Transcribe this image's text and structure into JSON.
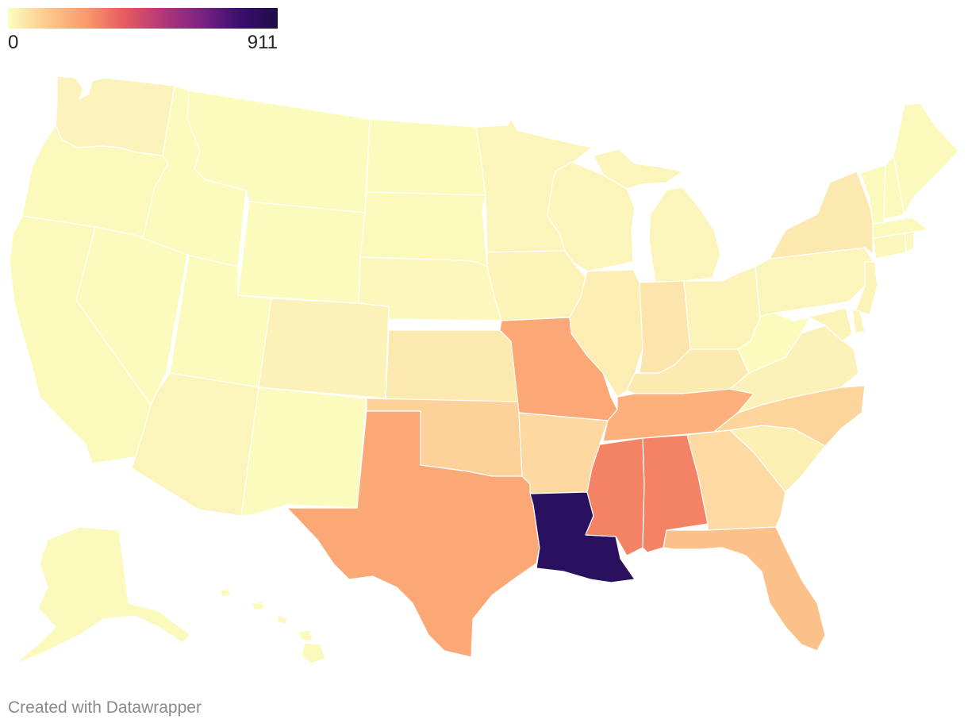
{
  "legend": {
    "min_label": "0",
    "max_label": "911",
    "gradient_colors": [
      "#fcfdbf",
      "#fdc98f",
      "#fc9b6c",
      "#e65c5f",
      "#b63778",
      "#7c2382",
      "#3b0f70",
      "#1f0c48"
    ]
  },
  "credit": "Created with Datawrapper",
  "states": [
    {
      "id": "WA",
      "color": "#fbf3bb"
    },
    {
      "id": "OR",
      "color": "#fcf9bd"
    },
    {
      "id": "CA",
      "color": "#fcf9bd"
    },
    {
      "id": "NV",
      "color": "#fcfbbe"
    },
    {
      "id": "ID",
      "color": "#fcfbbe"
    },
    {
      "id": "MT",
      "color": "#fcfbbe"
    },
    {
      "id": "WY",
      "color": "#fcfbbe"
    },
    {
      "id": "UT",
      "color": "#fcfbbe"
    },
    {
      "id": "AZ",
      "color": "#fcf5bb"
    },
    {
      "id": "CO",
      "color": "#fcf1b8"
    },
    {
      "id": "NM",
      "color": "#fcfbbe"
    },
    {
      "id": "ND",
      "color": "#fcfbbe"
    },
    {
      "id": "SD",
      "color": "#fcf9bd"
    },
    {
      "id": "NE",
      "color": "#fcf7bc"
    },
    {
      "id": "KS",
      "color": "#fce9b0"
    },
    {
      "id": "OK",
      "color": "#fdd29a"
    },
    {
      "id": "TX",
      "color": "#fba876"
    },
    {
      "id": "MN",
      "color": "#fcf5bb"
    },
    {
      "id": "IA",
      "color": "#fcf3b9"
    },
    {
      "id": "MO",
      "color": "#fba876"
    },
    {
      "id": "AR",
      "color": "#fdd8a0"
    },
    {
      "id": "LA",
      "color": "#2a1160"
    },
    {
      "id": "WI",
      "color": "#fcf5bb"
    },
    {
      "id": "IL",
      "color": "#fcedb3"
    },
    {
      "id": "MI",
      "color": "#fcf5bb"
    },
    {
      "id": "IN",
      "color": "#fce5ad"
    },
    {
      "id": "OH",
      "color": "#fcf3b9"
    },
    {
      "id": "KY",
      "color": "#fcebb1"
    },
    {
      "id": "TN",
      "color": "#fcb07b"
    },
    {
      "id": "MS",
      "color": "#f48366"
    },
    {
      "id": "AL",
      "color": "#f48366"
    },
    {
      "id": "GA",
      "color": "#fddaa2"
    },
    {
      "id": "FL",
      "color": "#fcc18a"
    },
    {
      "id": "SC",
      "color": "#fcefb4"
    },
    {
      "id": "NC",
      "color": "#fdd59c"
    },
    {
      "id": "VA",
      "color": "#fcf1b8"
    },
    {
      "id": "WV",
      "color": "#fcfbbe"
    },
    {
      "id": "PA",
      "color": "#fcf5bb"
    },
    {
      "id": "NY",
      "color": "#fce9b0"
    },
    {
      "id": "NJ",
      "color": "#fcf3b9"
    },
    {
      "id": "DE",
      "color": "#fcf5bb"
    },
    {
      "id": "MD",
      "color": "#fcf3b9"
    },
    {
      "id": "CT",
      "color": "#fcf7bc"
    },
    {
      "id": "RI",
      "color": "#fcf7bc"
    },
    {
      "id": "MA",
      "color": "#fcf9bd"
    },
    {
      "id": "VT",
      "color": "#fcf9bd"
    },
    {
      "id": "NH",
      "color": "#fcf9bd"
    },
    {
      "id": "ME",
      "color": "#fcf9bd"
    },
    {
      "id": "AK",
      "color": "#fcf9bd"
    },
    {
      "id": "HI",
      "color": "#fcf9bd"
    }
  ]
}
